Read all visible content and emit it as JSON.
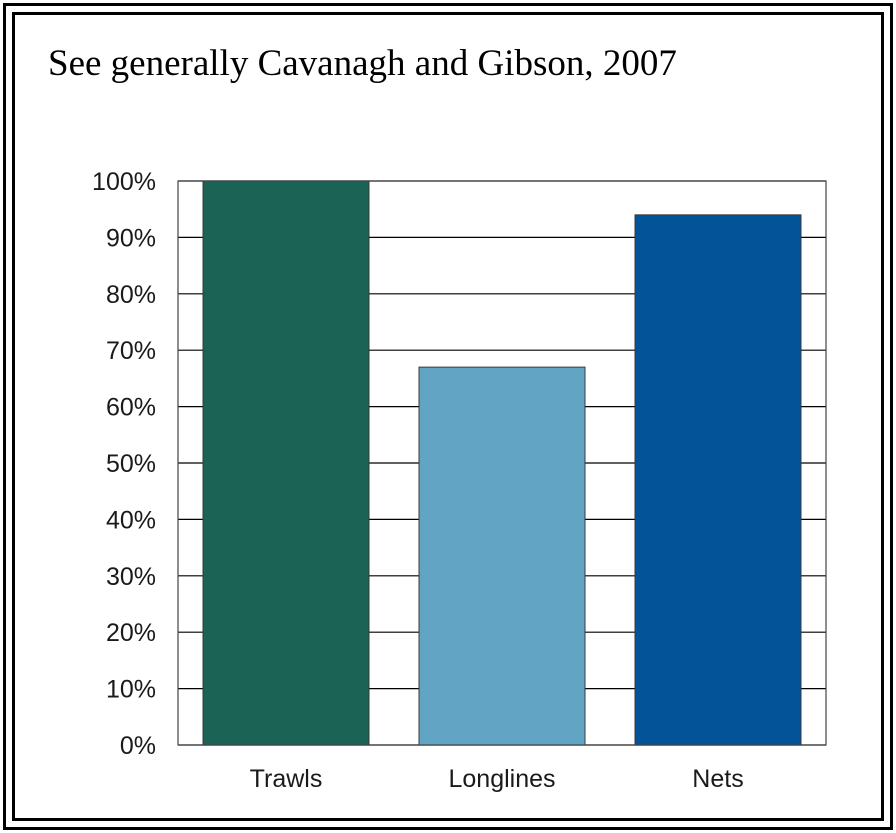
{
  "chart_data": {
    "type": "bar",
    "title": "See generally Cavanagh and Gibson, 2007",
    "categories": [
      "Trawls",
      "Longlines",
      "Nets"
    ],
    "values": [
      100,
      67,
      94
    ],
    "colors": [
      "#1b6354",
      "#62a4c4",
      "#035399"
    ],
    "ylim": [
      0,
      100
    ],
    "yticks": [
      "0%",
      "10%",
      "20%",
      "30%",
      "40%",
      "50%",
      "60%",
      "70%",
      "80%",
      "90%",
      "100%"
    ],
    "xlabel": "",
    "ylabel": "",
    "grid": true
  }
}
